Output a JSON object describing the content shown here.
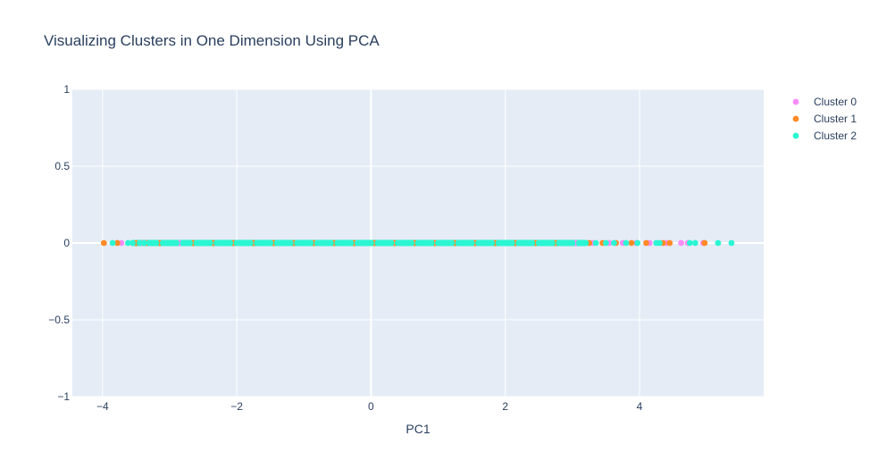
{
  "chart_data": {
    "type": "scatter",
    "title": "Visualizing Clusters in One Dimension Using PCA",
    "xlabel": "PC1",
    "ylabel": "",
    "xlim": [
      -4.45,
      5.85
    ],
    "ylim": [
      -1,
      1
    ],
    "x_ticks": [
      -4,
      -2,
      0,
      2,
      4
    ],
    "x_tick_labels": [
      "−4",
      "−2",
      "0",
      "2",
      "4"
    ],
    "y_ticks": [
      -1,
      -0.5,
      0,
      0.5,
      1
    ],
    "y_tick_labels": [
      "−1",
      "−0.5",
      "0",
      "0.5",
      "1"
    ],
    "grid": true,
    "legend_position": "top-right",
    "background_color": "#e5ecf6",
    "series": [
      {
        "name": "Cluster 0",
        "color": "#f88cf8",
        "x": [
          -3.72,
          -3.4,
          -3.3,
          -3.1,
          -2.85,
          -2.6,
          -2.3,
          -2.0,
          -1.7,
          -1.4,
          -1.1,
          -0.8,
          -0.5,
          -0.2,
          0.1,
          0.4,
          0.7,
          1.0,
          1.3,
          1.6,
          1.9,
          2.2,
          2.5,
          2.8,
          3.05,
          3.3,
          3.55,
          3.75,
          3.95,
          4.15,
          4.4,
          4.62,
          4.72,
          4.95
        ],
        "y": [
          0,
          0,
          0,
          0,
          0,
          0,
          0,
          0,
          0,
          0,
          0,
          0,
          0,
          0,
          0,
          0,
          0,
          0,
          0,
          0,
          0,
          0,
          0,
          0,
          0,
          0,
          0,
          0,
          0,
          0,
          0,
          0,
          0,
          0
        ]
      },
      {
        "name": "Cluster 1",
        "color": "#fe8a26",
        "x": [
          -3.98,
          -3.78,
          -3.5,
          -3.35,
          -3.15,
          -2.9,
          -2.65,
          -2.35,
          -2.05,
          -1.75,
          -1.45,
          -1.15,
          -0.85,
          -0.55,
          -0.25,
          0.05,
          0.35,
          0.65,
          0.95,
          1.25,
          1.55,
          1.85,
          2.15,
          2.45,
          2.75,
          3.0,
          3.25,
          3.45,
          3.65,
          3.88,
          4.1,
          4.35,
          4.45,
          4.97
        ],
        "y": [
          0,
          0,
          0,
          0,
          0,
          0,
          0,
          0,
          0,
          0,
          0,
          0,
          0,
          0,
          0,
          0,
          0,
          0,
          0,
          0,
          0,
          0,
          0,
          0,
          0,
          0,
          0,
          0,
          0,
          0,
          0,
          0,
          0,
          0
        ]
      },
      {
        "name": "Cluster 2",
        "color": "#2af6d2",
        "x": [
          -3.85,
          -3.62,
          -3.55,
          -3.45,
          -3.38,
          -3.3,
          -3.2,
          -3.1,
          -3.0,
          -2.9,
          -2.8,
          -2.7,
          -2.6,
          -2.5,
          -2.4,
          -2.3,
          -2.2,
          -2.1,
          -2.0,
          -1.9,
          -1.8,
          -1.7,
          -1.6,
          -1.5,
          -1.4,
          -1.3,
          -1.2,
          -1.1,
          -1.0,
          -0.9,
          -0.8,
          -0.7,
          -0.6,
          -0.5,
          -0.4,
          -0.3,
          -0.2,
          -0.1,
          0.0,
          0.1,
          0.2,
          0.3,
          0.4,
          0.5,
          0.6,
          0.7,
          0.8,
          0.9,
          1.0,
          1.1,
          1.2,
          1.3,
          1.4,
          1.5,
          1.6,
          1.7,
          1.8,
          1.9,
          2.0,
          2.1,
          2.2,
          2.3,
          2.4,
          2.5,
          2.6,
          2.7,
          2.8,
          2.9,
          3.0,
          3.1,
          3.2,
          3.35,
          3.5,
          3.62,
          3.8,
          3.97,
          4.25,
          4.3,
          4.75,
          4.83,
          5.17,
          5.37
        ],
        "y": [
          0,
          0,
          0,
          0,
          0,
          0,
          0,
          0,
          0,
          0,
          0,
          0,
          0,
          0,
          0,
          0,
          0,
          0,
          0,
          0,
          0,
          0,
          0,
          0,
          0,
          0,
          0,
          0,
          0,
          0,
          0,
          0,
          0,
          0,
          0,
          0,
          0,
          0,
          0,
          0,
          0,
          0,
          0,
          0,
          0,
          0,
          0,
          0,
          0,
          0,
          0,
          0,
          0,
          0,
          0,
          0,
          0,
          0,
          0,
          0,
          0,
          0,
          0,
          0,
          0,
          0,
          0,
          0,
          0,
          0,
          0,
          0,
          0,
          0,
          0,
          0,
          0,
          0,
          0,
          0,
          0,
          0
        ]
      }
    ]
  }
}
